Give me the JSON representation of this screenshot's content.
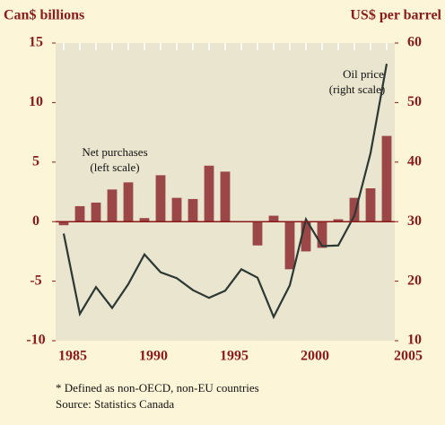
{
  "chart_data": {
    "type": "bar+line",
    "y_label": "Can$ billions",
    "y2_label": "US$ per barrel",
    "categories": [
      "1985",
      null,
      null,
      null,
      null,
      "1990",
      null,
      null,
      null,
      null,
      "1995",
      null,
      null,
      null,
      null,
      "2000",
      null,
      null,
      null,
      null,
      "2005"
    ],
    "series": [
      {
        "name": "Net purchases",
        "type": "bar",
        "color": "#9c4747",
        "values": [
          -0.3,
          1.3,
          1.6,
          2.7,
          3.3,
          0.3,
          3.9,
          2.0,
          1.9,
          4.7,
          4.2,
          0.05,
          -2.0,
          0.5,
          -4.0,
          -2.5,
          -2.2,
          0.2,
          2.0,
          2.8,
          7.2
        ]
      },
      {
        "name": "Oil price",
        "type": "line",
        "axis": "y2",
        "color": "#2c3834",
        "values": [
          28,
          14.5,
          19,
          15.5,
          19.5,
          24.5,
          21.5,
          20.5,
          18.5,
          17.2,
          18.4,
          22,
          20.6,
          14,
          19.3,
          30.4,
          25.9,
          26,
          31,
          41.5,
          56.5
        ]
      }
    ],
    "ylim": [
      -10,
      15
    ],
    "yticks": [
      -10,
      -5,
      0,
      5,
      10,
      15
    ],
    "y2lim": [
      10,
      60
    ],
    "y2ticks": [
      10,
      20,
      30,
      40,
      50,
      60
    ],
    "annotations": [
      [
        "Net purchases",
        "(left scale)"
      ],
      [
        "Oil price",
        "(right scale)"
      ]
    ],
    "footnotes": [
      "* Defined as non-OECD, non-EU countries",
      "Source: Statistics Canada"
    ]
  }
}
